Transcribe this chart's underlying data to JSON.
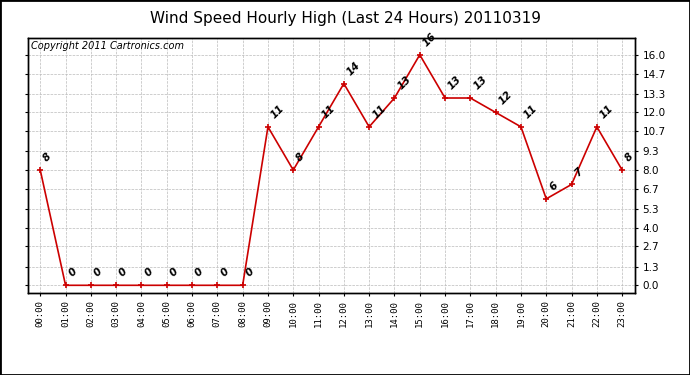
{
  "title": "Wind Speed Hourly High (Last 24 Hours) 20110319",
  "copyright": "Copyright 2011 Cartronics.com",
  "hours": [
    "00:00",
    "01:00",
    "02:00",
    "03:00",
    "04:00",
    "05:00",
    "06:00",
    "07:00",
    "08:00",
    "09:00",
    "10:00",
    "11:00",
    "12:00",
    "13:00",
    "14:00",
    "15:00",
    "16:00",
    "17:00",
    "18:00",
    "19:00",
    "20:00",
    "21:00",
    "22:00",
    "23:00"
  ],
  "values": [
    8,
    0,
    0,
    0,
    0,
    0,
    0,
    0,
    0,
    11,
    8,
    11,
    14,
    11,
    13,
    16,
    13,
    13,
    12,
    11,
    6,
    7,
    11,
    8
  ],
  "line_color": "#cc0000",
  "marker_color": "#cc0000",
  "bg_color": "#ffffff",
  "grid_color": "#bbbbbb",
  "yticks": [
    0.0,
    1.3,
    2.7,
    4.0,
    5.3,
    6.7,
    8.0,
    9.3,
    10.7,
    12.0,
    13.3,
    14.7,
    16.0
  ],
  "ylim": [
    -0.5,
    17.2
  ],
  "title_fontsize": 11,
  "label_fontsize": 7.5,
  "copyright_fontsize": 7
}
